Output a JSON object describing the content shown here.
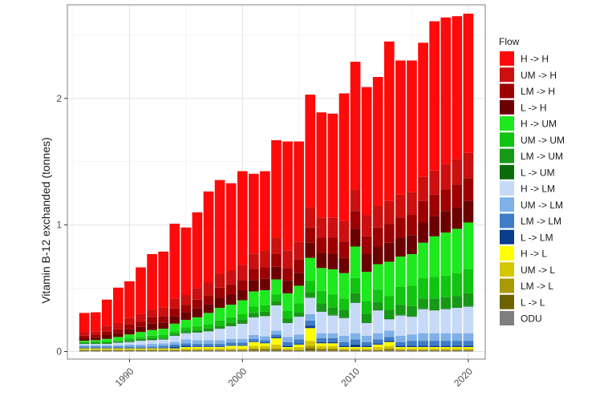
{
  "chart_data": {
    "type": "bar",
    "stacked": true,
    "title": "",
    "xlabel": "",
    "ylabel": "Vitamin B-12 exchanded (tonnes)",
    "xticks": [
      "1990",
      "2000",
      "2010",
      "2020"
    ],
    "xtick_values": [
      1990,
      2000,
      2010,
      2020
    ],
    "yticks": [
      "0",
      "1",
      "2"
    ],
    "ytick_values": [
      0,
      1,
      2
    ],
    "xlim": [
      1984.5,
      2021.5
    ],
    "ylim": [
      -0.06,
      2.74
    ],
    "grid": true,
    "legend_position": "right",
    "legend_title": "Flow",
    "years": [
      1986,
      1987,
      1988,
      1989,
      1990,
      1991,
      1992,
      1993,
      1994,
      1995,
      1996,
      1997,
      1998,
      1999,
      2000,
      2001,
      2002,
      2003,
      2004,
      2005,
      2006,
      2007,
      2008,
      2009,
      2010,
      2011,
      2012,
      2013,
      2014,
      2015,
      2016,
      2017,
      2018,
      2019,
      2020
    ],
    "series": [
      {
        "name": "ODU",
        "color": "#7f7f7f",
        "values": [
          0.005,
          0.005,
          0.005,
          0.005,
          0.005,
          0.005,
          0.005,
          0.005,
          0.005,
          0.005,
          0.005,
          0.005,
          0.005,
          0.005,
          0.005,
          0.005,
          0.005,
          0.005,
          0.005,
          0.005,
          0.005,
          0.005,
          0.005,
          0.005,
          0.005,
          0.005,
          0.005,
          0.005,
          0.005,
          0.005,
          0.005,
          0.005,
          0.005,
          0.005,
          0.005
        ]
      },
      {
        "name": "L -> L",
        "color": "#6e6200",
        "values": [
          0.005,
          0.005,
          0.005,
          0.005,
          0.005,
          0.005,
          0.005,
          0.005,
          0.005,
          0.005,
          0.005,
          0.005,
          0.005,
          0.005,
          0.005,
          0.01,
          0.01,
          0.01,
          0.005,
          0.005,
          0.02,
          0.01,
          0.01,
          0.005,
          0.005,
          0.005,
          0.005,
          0.01,
          0.005,
          0.005,
          0.005,
          0.005,
          0.005,
          0.005,
          0.005
        ]
      },
      {
        "name": "LM -> L",
        "color": "#a89a00",
        "values": [
          0.005,
          0.005,
          0.005,
          0.005,
          0.005,
          0.005,
          0.005,
          0.005,
          0.005,
          0.005,
          0.005,
          0.005,
          0.005,
          0.005,
          0.005,
          0.01,
          0.01,
          0.01,
          0.005,
          0.005,
          0.02,
          0.01,
          0.01,
          0.005,
          0.005,
          0.005,
          0.005,
          0.01,
          0.005,
          0.005,
          0.005,
          0.005,
          0.005,
          0.005,
          0.005
        ]
      },
      {
        "name": "UM -> L",
        "color": "#d4c800",
        "values": [
          0.005,
          0.005,
          0.005,
          0.005,
          0.005,
          0.005,
          0.005,
          0.005,
          0.005,
          0.01,
          0.01,
          0.01,
          0.01,
          0.01,
          0.01,
          0.02,
          0.02,
          0.03,
          0.01,
          0.02,
          0.04,
          0.02,
          0.02,
          0.01,
          0.01,
          0.01,
          0.02,
          0.02,
          0.01,
          0.01,
          0.01,
          0.01,
          0.01,
          0.01,
          0.01
        ]
      },
      {
        "name": "H -> L",
        "color": "#ffff00",
        "values": [
          0.005,
          0.005,
          0.005,
          0.005,
          0.005,
          0.005,
          0.005,
          0.005,
          0.005,
          0.01,
          0.01,
          0.01,
          0.01,
          0.02,
          0.02,
          0.03,
          0.02,
          0.05,
          0.01,
          0.02,
          0.1,
          0.02,
          0.02,
          0.01,
          0.01,
          0.01,
          0.02,
          0.03,
          0.01,
          0.01,
          0.01,
          0.01,
          0.01,
          0.01,
          0.01
        ]
      },
      {
        "name": "L -> LM",
        "color": "#0a3d8a",
        "values": [
          0.005,
          0.005,
          0.005,
          0.005,
          0.005,
          0.005,
          0.005,
          0.005,
          0.01,
          0.01,
          0.005,
          0.005,
          0.005,
          0.005,
          0.005,
          0.005,
          0.005,
          0.01,
          0.01,
          0.01,
          0.02,
          0.01,
          0.01,
          0.01,
          0.02,
          0.01,
          0.01,
          0.01,
          0.01,
          0.01,
          0.01,
          0.01,
          0.01,
          0.01,
          0.01
        ]
      },
      {
        "name": "LM -> LM",
        "color": "#3f7cc7",
        "values": [
          0.01,
          0.01,
          0.01,
          0.01,
          0.01,
          0.01,
          0.01,
          0.015,
          0.02,
          0.02,
          0.02,
          0.02,
          0.02,
          0.02,
          0.02,
          0.02,
          0.02,
          0.02,
          0.03,
          0.03,
          0.04,
          0.03,
          0.03,
          0.03,
          0.04,
          0.03,
          0.03,
          0.03,
          0.03,
          0.04,
          0.04,
          0.04,
          0.04,
          0.04,
          0.04
        ]
      },
      {
        "name": "UM -> LM",
        "color": "#7fb1e8",
        "values": [
          0.01,
          0.01,
          0.01,
          0.01,
          0.015,
          0.015,
          0.02,
          0.02,
          0.02,
          0.03,
          0.03,
          0.03,
          0.03,
          0.03,
          0.03,
          0.03,
          0.03,
          0.03,
          0.04,
          0.04,
          0.05,
          0.04,
          0.04,
          0.05,
          0.05,
          0.05,
          0.05,
          0.05,
          0.05,
          0.05,
          0.06,
          0.06,
          0.06,
          0.06,
          0.06
        ]
      },
      {
        "name": "H -> LM",
        "color": "#c6daf7",
        "values": [
          0.01,
          0.01,
          0.01,
          0.02,
          0.02,
          0.03,
          0.03,
          0.03,
          0.05,
          0.05,
          0.06,
          0.07,
          0.09,
          0.1,
          0.12,
          0.14,
          0.16,
          0.2,
          0.11,
          0.14,
          0.13,
          0.17,
          0.14,
          0.14,
          0.24,
          0.1,
          0.18,
          0.09,
          0.16,
          0.14,
          0.19,
          0.18,
          0.19,
          0.2,
          0.21
        ]
      },
      {
        "name": "L -> UM",
        "color": "#0a6b0a",
        "values": [
          0.005,
          0.005,
          0.005,
          0.005,
          0.005,
          0.005,
          0.005,
          0.005,
          0.005,
          0.005,
          0.005,
          0.005,
          0.005,
          0.005,
          0.005,
          0.005,
          0.005,
          0.005,
          0.005,
          0.005,
          0.005,
          0.005,
          0.005,
          0.005,
          0.005,
          0.005,
          0.005,
          0.005,
          0.005,
          0.005,
          0.005,
          0.005,
          0.005,
          0.005,
          0.005
        ]
      },
      {
        "name": "LM -> UM",
        "color": "#169916",
        "values": [
          0.005,
          0.005,
          0.005,
          0.005,
          0.01,
          0.01,
          0.01,
          0.01,
          0.01,
          0.015,
          0.015,
          0.02,
          0.02,
          0.025,
          0.03,
          0.03,
          0.03,
          0.03,
          0.03,
          0.03,
          0.04,
          0.06,
          0.06,
          0.06,
          0.07,
          0.07,
          0.06,
          0.07,
          0.08,
          0.08,
          0.08,
          0.09,
          0.09,
          0.09,
          0.1
        ]
      },
      {
        "name": "UM -> UM",
        "color": "#11c411",
        "values": [
          0.005,
          0.01,
          0.01,
          0.01,
          0.015,
          0.015,
          0.02,
          0.02,
          0.02,
          0.025,
          0.03,
          0.03,
          0.04,
          0.04,
          0.04,
          0.05,
          0.05,
          0.05,
          0.06,
          0.07,
          0.09,
          0.1,
          0.1,
          0.09,
          0.12,
          0.1,
          0.1,
          0.11,
          0.14,
          0.16,
          0.16,
          0.17,
          0.17,
          0.18,
          0.19
        ]
      },
      {
        "name": "H -> UM",
        "color": "#1ee81e",
        "values": [
          0.01,
          0.01,
          0.02,
          0.025,
          0.03,
          0.04,
          0.045,
          0.05,
          0.06,
          0.06,
          0.07,
          0.09,
          0.1,
          0.1,
          0.11,
          0.12,
          0.12,
          0.12,
          0.14,
          0.14,
          0.18,
          0.18,
          0.2,
          0.2,
          0.25,
          0.23,
          0.2,
          0.27,
          0.24,
          0.25,
          0.28,
          0.32,
          0.34,
          0.35,
          0.37
        ]
      },
      {
        "name": "L -> H",
        "color": "#6b0000",
        "values": [
          0.02,
          0.02,
          0.03,
          0.03,
          0.04,
          0.04,
          0.05,
          0.05,
          0.06,
          0.06,
          0.07,
          0.07,
          0.08,
          0.08,
          0.08,
          0.09,
          0.09,
          0.1,
          0.1,
          0.1,
          0.12,
          0.12,
          0.12,
          0.12,
          0.14,
          0.14,
          0.14,
          0.15,
          0.15,
          0.15,
          0.16,
          0.16,
          0.17,
          0.17,
          0.17
        ]
      },
      {
        "name": "LM -> H",
        "color": "#9c0000",
        "values": [
          0.02,
          0.02,
          0.03,
          0.03,
          0.04,
          0.04,
          0.05,
          0.05,
          0.06,
          0.06,
          0.07,
          0.07,
          0.08,
          0.08,
          0.08,
          0.09,
          0.09,
          0.1,
          0.1,
          0.11,
          0.12,
          0.12,
          0.13,
          0.13,
          0.14,
          0.14,
          0.15,
          0.15,
          0.16,
          0.16,
          0.17,
          0.17,
          0.17,
          0.18,
          0.18
        ]
      },
      {
        "name": "UM -> H",
        "color": "#cc0f0f",
        "values": [
          0.03,
          0.03,
          0.04,
          0.05,
          0.05,
          0.06,
          0.06,
          0.07,
          0.08,
          0.08,
          0.09,
          0.1,
          0.11,
          0.11,
          0.12,
          0.12,
          0.13,
          0.13,
          0.14,
          0.14,
          0.16,
          0.16,
          0.16,
          0.16,
          0.17,
          0.17,
          0.17,
          0.18,
          0.18,
          0.18,
          0.19,
          0.19,
          0.2,
          0.2,
          0.2
        ]
      },
      {
        "name": "H -> H",
        "color": "#ff0a0a",
        "values": [
          0.15,
          0.15,
          0.21,
          0.28,
          0.29,
          0.37,
          0.44,
          0.44,
          0.59,
          0.53,
          0.6,
          0.72,
          0.74,
          0.69,
          0.74,
          0.63,
          0.63,
          0.77,
          0.86,
          0.79,
          0.89,
          0.83,
          0.82,
          1.01,
          1.01,
          1.01,
          1.02,
          1.26,
          1.06,
          1.04,
          1.06,
          1.18,
          1.16,
          1.13,
          1.1
        ]
      }
    ]
  }
}
